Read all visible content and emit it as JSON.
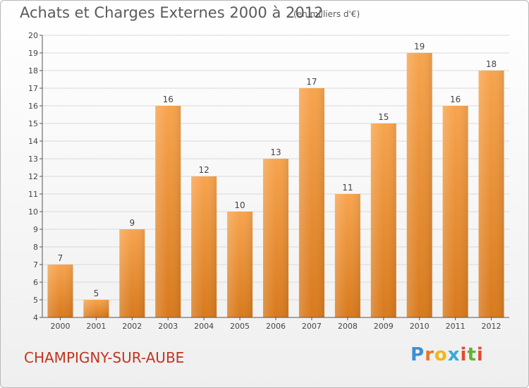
{
  "header": {
    "title": "Achats et Charges Externes 2000 à 2012",
    "subtitle": "(en milliers d'€)"
  },
  "footer": {
    "commune": "CHAMPIGNY-SUR-AUBE",
    "logo_text": "Proxiti",
    "logo_colors": [
      "#3b8fd6",
      "#e9752a",
      "#f2b51e",
      "#3aa8d8",
      "#e34a33",
      "#5fb336",
      "#e34a33"
    ]
  },
  "colors": {
    "bar_top": "#f7a44e",
    "bar_bottom": "#d87a1d",
    "grid": "#d9d9d9",
    "axis": "#555555",
    "text": "#444444"
  },
  "chart_data": {
    "type": "bar",
    "categories": [
      "2000",
      "2001",
      "2002",
      "2003",
      "2004",
      "2005",
      "2006",
      "2007",
      "2008",
      "2009",
      "2010",
      "2011",
      "2012"
    ],
    "values": [
      7,
      5,
      9,
      16,
      12,
      10,
      13,
      17,
      11,
      15,
      19,
      16,
      18
    ],
    "title": "Achats et Charges Externes 2000 à 2012",
    "ylim": [
      4,
      20
    ],
    "yticks": [
      4,
      5,
      6,
      7,
      8,
      9,
      10,
      11,
      12,
      13,
      14,
      15,
      16,
      17,
      18,
      19,
      20
    ],
    "grid": true
  }
}
